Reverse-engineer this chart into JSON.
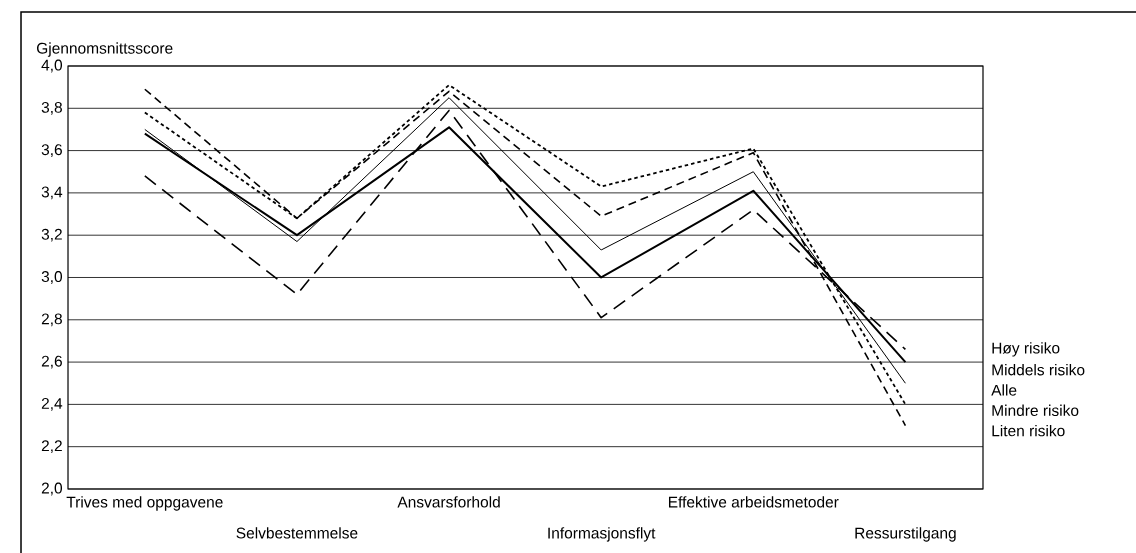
{
  "chart_data": {
    "type": "line",
    "ylabel": "Gjennomsnittsscore",
    "categories": [
      "Trives med oppgavene",
      "Selvbestemmelse",
      "Ansvarsforhold",
      "Informasjonsflyt",
      "Effektive arbeidsmetoder",
      "Ressurstilgang"
    ],
    "series": [
      {
        "name": "Høy risiko",
        "color": "#000000",
        "line_style": "dashed",
        "values": [
          3.48,
          2.92,
          3.79,
          2.81,
          3.32,
          2.66
        ]
      },
      {
        "name": "Middels risiko",
        "color": "#000000",
        "line_style": "solid",
        "values": [
          3.68,
          3.2,
          3.71,
          3.0,
          3.41,
          2.6
        ]
      },
      {
        "name": "Alle",
        "color": "#000000",
        "line_style": "solid",
        "values": [
          3.7,
          3.17,
          3.85,
          3.13,
          3.5,
          2.5
        ]
      },
      {
        "name": "Mindre risiko",
        "color": "#000000",
        "line_style": "dotted",
        "values": [
          3.78,
          3.28,
          3.91,
          3.43,
          3.61,
          2.4
        ]
      },
      {
        "name": "Liten risiko",
        "color": "#000000",
        "line_style": "dashed",
        "values": [
          3.89,
          3.28,
          3.88,
          3.29,
          3.59,
          2.3
        ]
      }
    ],
    "ylim": [
      2.0,
      4.0
    ],
    "yticks": [
      {
        "value": 2.0,
        "label": "2,0"
      },
      {
        "value": 2.2,
        "label": "2,2"
      },
      {
        "value": 2.4,
        "label": "2,4"
      },
      {
        "value": 2.6,
        "label": "2,6"
      },
      {
        "value": 2.8,
        "label": "2,8"
      },
      {
        "value": 3.0,
        "label": "3,0"
      },
      {
        "value": 3.2,
        "label": "3,2"
      },
      {
        "value": 3.4,
        "label": "3,4"
      },
      {
        "value": 3.6,
        "label": "3,6"
      },
      {
        "value": 3.8,
        "label": "3,8"
      },
      {
        "value": 4.0,
        "label": "4,0"
      }
    ],
    "grid": "y"
  }
}
